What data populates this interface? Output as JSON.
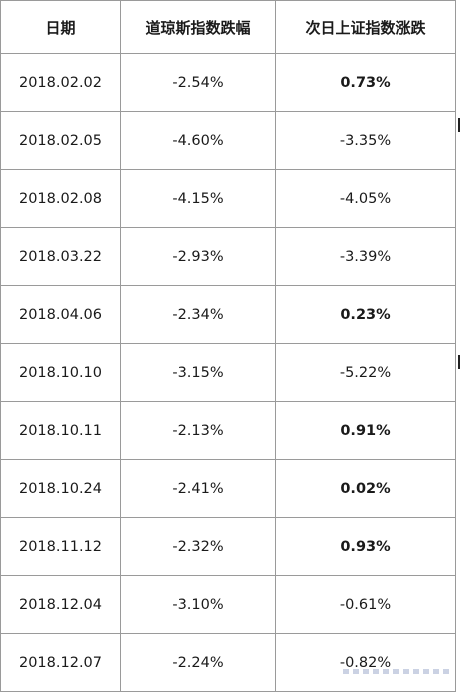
{
  "table": {
    "headers": [
      "日期",
      "道琼斯指数跌幅",
      "次日上证指数涨跌"
    ],
    "rows": [
      {
        "date": "2018.02.02",
        "dow": "-2.54%",
        "sh": "0.73%",
        "sh_positive": true
      },
      {
        "date": "2018.02.05",
        "dow": "-4.60%",
        "sh": "-3.35%",
        "sh_positive": false
      },
      {
        "date": "2018.02.08",
        "dow": "-4.15%",
        "sh": "-4.05%",
        "sh_positive": false
      },
      {
        "date": "2018.03.22",
        "dow": "-2.93%",
        "sh": "-3.39%",
        "sh_positive": false
      },
      {
        "date": "2018.04.06",
        "dow": "-2.34%",
        "sh": "0.23%",
        "sh_positive": true
      },
      {
        "date": "2018.10.10",
        "dow": "-3.15%",
        "sh": "-5.22%",
        "sh_positive": false
      },
      {
        "date": "2018.10.11",
        "dow": "-2.13%",
        "sh": "0.91%",
        "sh_positive": true
      },
      {
        "date": "2018.10.24",
        "dow": "-2.41%",
        "sh": "0.02%",
        "sh_positive": true
      },
      {
        "date": "2018.11.12",
        "dow": "-2.32%",
        "sh": "0.93%",
        "sh_positive": true
      },
      {
        "date": "2018.12.04",
        "dow": "-3.10%",
        "sh": "-0.61%",
        "sh_positive": false
      },
      {
        "date": "2018.12.07",
        "dow": "-2.24%",
        "sh": "-0.82%",
        "sh_positive": false
      }
    ]
  }
}
